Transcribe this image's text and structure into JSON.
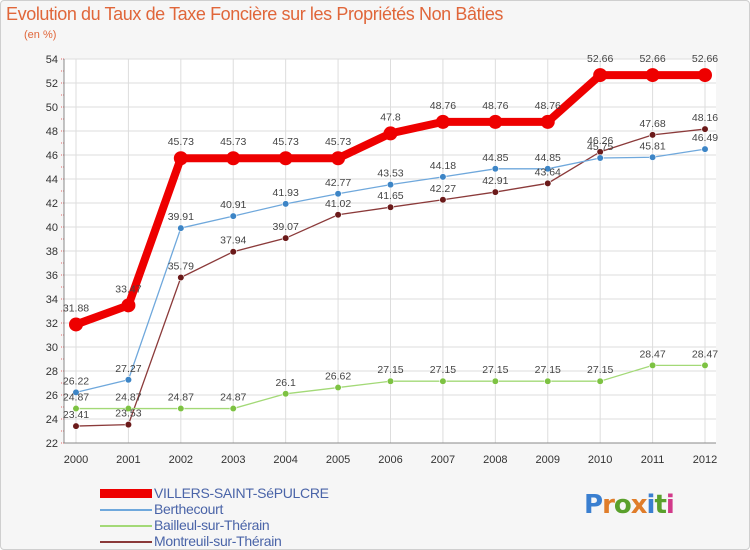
{
  "title": "Evolution du Taux de Taxe Foncière sur les Propriétés Non Bâties",
  "subtitle": "(en %)",
  "logo": {
    "text": "Proxiti",
    "colors": [
      "#3a7fd0",
      "#e07d2a",
      "#5aa02c",
      "#e07d2a",
      "#3a7fd0",
      "#5aa02c",
      "#d23a8a"
    ]
  },
  "chart_data": {
    "type": "line",
    "title": "Evolution du Taux de Taxe Foncière sur les Propriétés Non Bâties",
    "ylabel": "(en %)",
    "xlabel": "",
    "ylim": [
      22,
      54
    ],
    "yticks": [
      22,
      24,
      26,
      28,
      30,
      32,
      34,
      36,
      38,
      40,
      42,
      44,
      46,
      48,
      50,
      52,
      54
    ],
    "x": [
      "2000",
      "2001",
      "2002",
      "2003",
      "2004",
      "2005",
      "2006",
      "2007",
      "2008",
      "2009",
      "2010",
      "2011",
      "2012"
    ],
    "grid": true,
    "legend_position": "bottom-left",
    "series": [
      {
        "name": "VILLERS-SAINT-SéPULCRE",
        "color": "#ee0000",
        "bold": true,
        "values": [
          31.88,
          33.47,
          45.73,
          45.73,
          45.73,
          45.73,
          47.8,
          48.76,
          48.76,
          48.76,
          52.66,
          52.66,
          52.66
        ],
        "labels": [
          "31.88",
          "33.47",
          "45.73",
          "45.73",
          "45.73",
          "45.73",
          "47.8",
          "48.76",
          "48.76",
          "48.76",
          "52.66",
          "52.66",
          "52.66"
        ]
      },
      {
        "name": "Berthecourt",
        "color": "#6fa8dc",
        "marker": "#3d85c6",
        "values": [
          26.22,
          27.27,
          39.91,
          40.91,
          41.93,
          42.77,
          43.53,
          44.18,
          44.85,
          44.85,
          45.75,
          45.81,
          46.49
        ],
        "labels": [
          "26.22",
          "27.27",
          "39.91",
          "40.91",
          "41.93",
          "42.77",
          "43.53",
          "44.18",
          "44.85",
          "44.85",
          "45.75",
          "45.81",
          "46.49"
        ]
      },
      {
        "name": "Bailleul-sur-Thérain",
        "color": "#a3d977",
        "marker": "#7dc242",
        "values": [
          24.87,
          24.87,
          24.87,
          24.87,
          26.1,
          26.62,
          27.15,
          27.15,
          27.15,
          27.15,
          27.15,
          28.47,
          28.47
        ],
        "labels": [
          "24.87",
          "24.87",
          "24.87",
          "24.87",
          "26.1",
          "26.62",
          "27.15",
          "27.15",
          "27.15",
          "27.15",
          "27.15",
          "28.47",
          "28.47"
        ]
      },
      {
        "name": "Montreuil-sur-Thérain",
        "color": "#8b3a3a",
        "marker": "#6b1a1a",
        "values": [
          23.41,
          23.53,
          35.79,
          37.94,
          39.07,
          41.02,
          41.65,
          42.27,
          42.91,
          43.64,
          46.26,
          47.68,
          48.16
        ],
        "labels": [
          "23.41",
          "23.53",
          "35.79",
          "37.94",
          "39.07",
          "41.02",
          "41.65",
          "42.27",
          "42.91",
          "43.64",
          "46.26",
          "47.68",
          "48.16"
        ]
      }
    ]
  }
}
